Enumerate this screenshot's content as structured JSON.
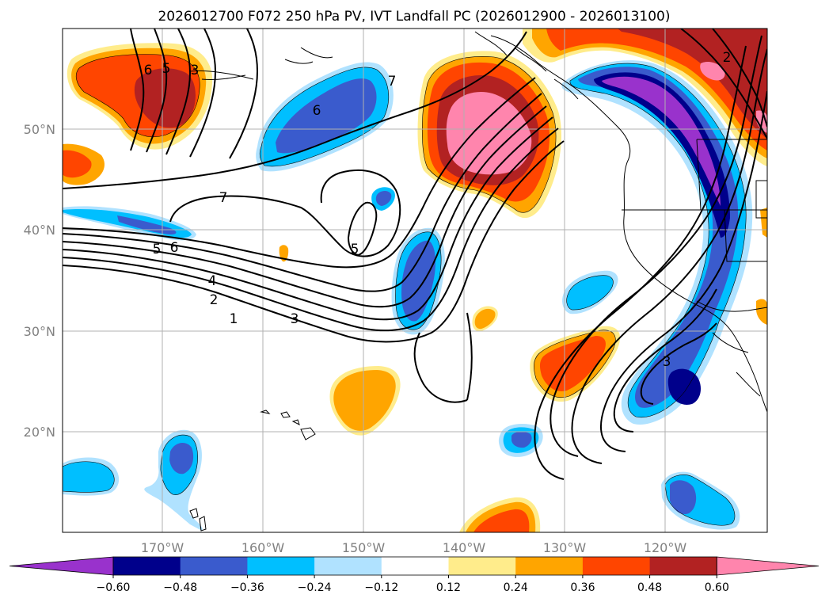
{
  "title": "2026012700 F072 250 hPa PV, IVT Landfall PC (2026012900 - 2026013100)",
  "lat_labels": [
    "50°N",
    "40°N",
    "30°N",
    "20°N"
  ],
  "lon_labels": [
    "170°W",
    "160°W",
    "150°W",
    "140°W",
    "130°W",
    "120°W"
  ],
  "colorbar": {
    "tick_labels": [
      "−0.60",
      "−0.48",
      "−0.36",
      "−0.24",
      "−0.12",
      "0.12",
      "0.24",
      "0.36",
      "0.48",
      "0.60"
    ],
    "colors": [
      "#9932cc",
      "#00008b",
      "#3a5bcd",
      "#00bfff",
      "#b0e2ff",
      "#ffffff",
      "#ffec8b",
      "#ffa500",
      "#ff4500",
      "#b22222",
      "#ff85ad"
    ]
  },
  "pv_contour_labels": [
    "1",
    "2",
    "3",
    "4",
    "5",
    "6",
    "7",
    "7",
    "6",
    "5",
    "6",
    "5",
    "3",
    "2",
    "3"
  ]
}
